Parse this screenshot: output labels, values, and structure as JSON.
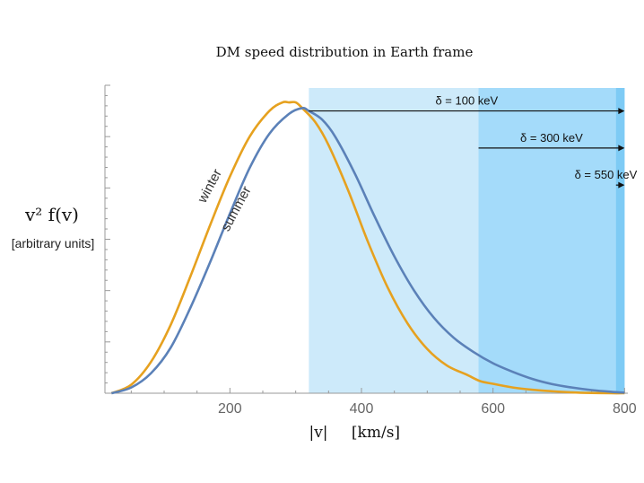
{
  "chart_data": {
    "type": "line",
    "title": "DM speed distribution in Earth frame",
    "ylabel": "v² f(v)",
    "ylabel_units": "[arbitrary units]",
    "xlabel": "|v|",
    "xlabel_units": "[km/s]",
    "xlim": [
      10,
      805
    ],
    "ylim": [
      0,
      1.08
    ],
    "xticks": [
      200,
      400,
      600,
      800
    ],
    "xtick_labels": [
      "200",
      "400",
      "600",
      "800"
    ],
    "series": [
      {
        "name": "winter",
        "color": "#e6a11f",
        "x": [
          20,
          50,
          80,
          110,
          140,
          170,
          200,
          230,
          260,
          280,
          290,
          300,
          310,
          330,
          350,
          380,
          410,
          440,
          470,
          500,
          530,
          560,
          580,
          600,
          630,
          660,
          690,
          720,
          750,
          780,
          800
        ],
        "y": [
          0.0,
          0.03,
          0.11,
          0.24,
          0.41,
          0.59,
          0.76,
          0.9,
          0.99,
          1.02,
          1.02,
          1.02,
          1.0,
          0.95,
          0.87,
          0.71,
          0.53,
          0.37,
          0.245,
          0.155,
          0.097,
          0.065,
          0.043,
          0.033,
          0.02,
          0.012,
          0.007,
          0.003,
          0.001,
          0.0,
          0.0
        ]
      },
      {
        "name": "summer",
        "color": "#5b81b8",
        "x": [
          20,
          50,
          80,
          110,
          140,
          170,
          200,
          230,
          260,
          290,
          310,
          320,
          340,
          360,
          390,
          420,
          450,
          480,
          510,
          540,
          570,
          600,
          630,
          660,
          690,
          720,
          750,
          780,
          800
        ],
        "y": [
          0.0,
          0.02,
          0.07,
          0.16,
          0.3,
          0.46,
          0.63,
          0.79,
          0.91,
          0.98,
          1.0,
          0.99,
          0.96,
          0.9,
          0.77,
          0.62,
          0.48,
          0.36,
          0.265,
          0.195,
          0.145,
          0.105,
          0.075,
          0.05,
          0.032,
          0.02,
          0.011,
          0.005,
          0.002
        ]
      }
    ],
    "annotations": [
      {
        "text": "winter",
        "at_x": 175,
        "at_y": 0.72,
        "color": "#333333"
      },
      {
        "text": "summer",
        "at_x": 215,
        "at_y": 0.64,
        "color": "#333333"
      }
    ],
    "thresholds": [
      {
        "label": "δ = 100 keV",
        "x_start": 320,
        "x_end": 800,
        "arrow_y": 0.99,
        "band_color": "#cdeafa"
      },
      {
        "label": "δ = 300 keV",
        "x_start": 578,
        "x_end": 800,
        "arrow_y": 0.86,
        "band_color": "#a4dbfa"
      },
      {
        "label": "δ = 550 keV",
        "x_start": 787,
        "x_end": 800,
        "arrow_y": 0.73,
        "band_color": "#7ecbf5"
      }
    ],
    "grid": false,
    "legend": "none"
  }
}
